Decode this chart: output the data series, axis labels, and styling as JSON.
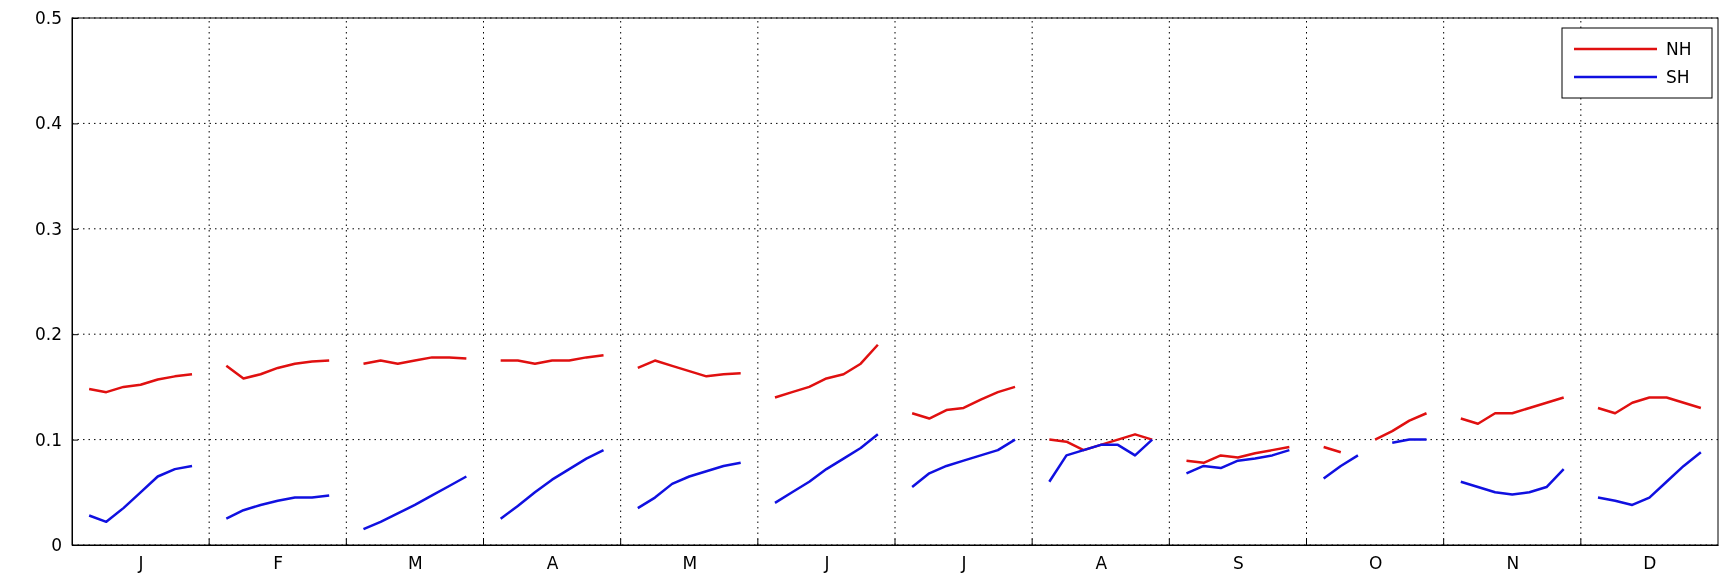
{
  "chart_data": {
    "type": "line",
    "ylim": [
      0,
      0.5
    ],
    "yticks": [
      0,
      0.1,
      0.2,
      0.3,
      0.4,
      0.5
    ],
    "categories": [
      null,
      null,
      null,
      "J",
      null,
      null,
      null,
      null,
      null,
      null,
      null,
      "F",
      null,
      null,
      null,
      null,
      null,
      null,
      null,
      "M",
      null,
      null,
      null,
      null,
      null,
      null,
      null,
      "A",
      null,
      null,
      null,
      null,
      null,
      null,
      null,
      "M",
      null,
      null,
      null,
      null,
      null,
      null,
      null,
      "J",
      null,
      null,
      null,
      null,
      null,
      null,
      null,
      "J",
      null,
      null,
      null,
      null,
      null,
      null,
      null,
      "A",
      null,
      null,
      null,
      null,
      null,
      null,
      null,
      "S",
      null,
      null,
      null,
      null,
      null,
      null,
      null,
      "O",
      null,
      null,
      null,
      null,
      null,
      null,
      null,
      "N",
      null,
      null,
      null,
      null,
      null,
      null,
      null,
      "D",
      null,
      null,
      null,
      null
    ],
    "grid": true,
    "legend": "top right",
    "line_style": "solid",
    "marker": "none",
    "series": [
      {
        "name": "NH",
        "color": "#e01010",
        "values": [
          0.148,
          0.145,
          0.15,
          0.152,
          0.157,
          0.16,
          0.162,
          null,
          0.17,
          0.158,
          0.162,
          0.168,
          0.172,
          0.174,
          0.175,
          null,
          0.172,
          0.175,
          0.172,
          0.175,
          0.178,
          0.178,
          0.177,
          null,
          0.175,
          0.175,
          0.172,
          0.175,
          0.175,
          0.178,
          0.18,
          null,
          0.168,
          0.175,
          0.17,
          0.165,
          0.16,
          0.162,
          0.163,
          null,
          0.14,
          0.145,
          0.15,
          0.158,
          0.162,
          0.172,
          0.19,
          null,
          0.125,
          0.12,
          0.128,
          0.13,
          0.138,
          0.145,
          0.15,
          null,
          0.1,
          0.098,
          0.09,
          0.095,
          0.1,
          0.105,
          0.1,
          null,
          0.08,
          0.078,
          0.085,
          0.083,
          0.087,
          0.09,
          0.093,
          null,
          0.093,
          0.088,
          null,
          0.1,
          0.108,
          0.118,
          0.125,
          null,
          0.12,
          0.115,
          0.125,
          0.125,
          0.13,
          0.135,
          0.14,
          null,
          0.13,
          0.125,
          0.135,
          0.14,
          0.14,
          0.135,
          0.13,
          null
        ]
      },
      {
        "name": "SH",
        "color": "#1010e0",
        "values": [
          0.028,
          0.022,
          0.035,
          0.05,
          0.065,
          0.072,
          0.075,
          null,
          0.025,
          0.033,
          0.038,
          0.042,
          0.045,
          0.045,
          0.047,
          null,
          0.015,
          0.022,
          0.03,
          0.038,
          0.047,
          0.056,
          0.065,
          null,
          0.025,
          0.037,
          0.05,
          0.062,
          0.072,
          0.082,
          0.09,
          null,
          0.035,
          0.045,
          0.058,
          0.065,
          0.07,
          0.075,
          0.078,
          null,
          0.04,
          0.05,
          0.06,
          0.072,
          0.082,
          0.092,
          0.105,
          null,
          0.055,
          0.068,
          0.075,
          0.08,
          0.085,
          0.09,
          0.1,
          null,
          0.06,
          0.085,
          0.09,
          0.095,
          0.095,
          0.085,
          0.1,
          null,
          0.068,
          0.075,
          0.073,
          0.08,
          0.082,
          0.085,
          0.09,
          null,
          0.063,
          0.075,
          0.085,
          null,
          0.097,
          0.1,
          0.1,
          null,
          0.06,
          0.055,
          0.05,
          0.048,
          0.05,
          0.055,
          0.072,
          null,
          0.045,
          0.042,
          0.038,
          0.045,
          0.06,
          0.075,
          0.088,
          null
        ]
      }
    ]
  }
}
